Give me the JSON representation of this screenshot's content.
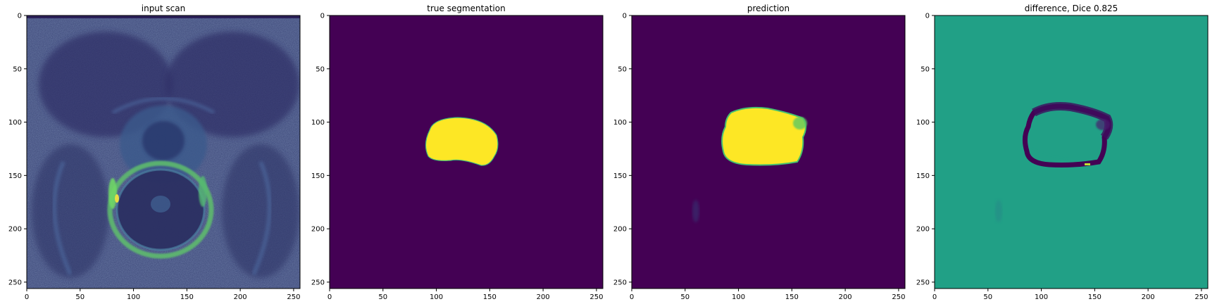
{
  "panels": [
    {
      "id": "input",
      "title": "input scan",
      "content": "mri-scan",
      "xticks": [
        0,
        50,
        100,
        150,
        200,
        250
      ],
      "yticks": [
        0,
        50,
        100,
        150,
        200,
        250
      ],
      "xlim": [
        0,
        256
      ],
      "ylim": [
        0,
        256
      ]
    },
    {
      "id": "truth",
      "title": "true segmentation",
      "content": "mask",
      "xticks": [
        0,
        50,
        100,
        150,
        200,
        250
      ],
      "yticks": [
        0,
        50,
        100,
        150,
        200,
        250
      ],
      "xlim": [
        0,
        256
      ],
      "ylim": [
        0,
        256
      ]
    },
    {
      "id": "prediction",
      "title": "prediction",
      "content": "mask",
      "xticks": [
        0,
        50,
        100,
        150,
        200,
        250
      ],
      "yticks": [
        0,
        50,
        100,
        150,
        200,
        250
      ],
      "xlim": [
        0,
        256
      ],
      "ylim": [
        0,
        256
      ]
    },
    {
      "id": "difference",
      "title": "difference, Dice 0.825",
      "content": "difference",
      "xticks": [
        0,
        50,
        100,
        150,
        200,
        250
      ],
      "yticks": [
        0,
        50,
        100,
        150,
        200,
        250
      ],
      "xlim": [
        0,
        256
      ],
      "ylim": [
        0,
        256
      ]
    }
  ],
  "colors": {
    "viridis_low": "#440154",
    "viridis_mid": "#21918c",
    "viridis_mid_alt": "#20a386",
    "viridis_high": "#fde725",
    "scan_dark": "#3b3f73",
    "scan_bright": "#5cc86a"
  }
}
